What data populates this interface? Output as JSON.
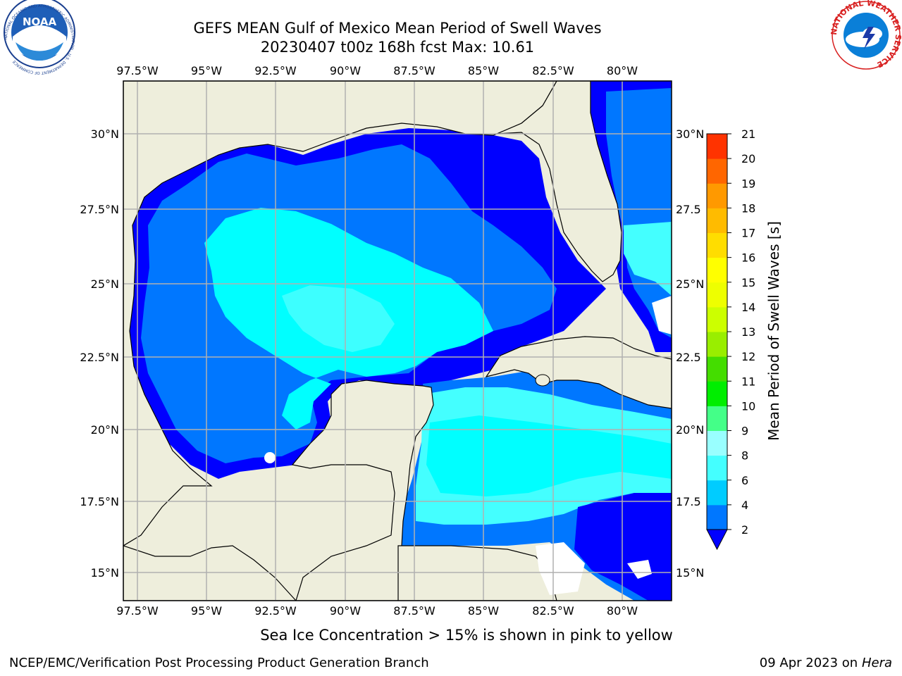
{
  "title": {
    "line1": "GEFS MEAN Gulf of Mexico Mean Period of Swell Waves",
    "line2": "20230407 t00z 168h fcst   Max: 10.61"
  },
  "map": {
    "lon_labels": [
      "97.5°W",
      "95°W",
      "92.5°W",
      "90°W",
      "87.5°W",
      "85°W",
      "82.5°W",
      "80°W"
    ],
    "lat_labels_left": [
      "30°N",
      "27.5°N",
      "25°N",
      "22.5°N",
      "20°N",
      "17.5°N",
      "15°N"
    ],
    "lat_labels_right": [
      "30°N",
      "27.5",
      "25°N",
      "22.5",
      "20°N",
      "17.5",
      "15°N"
    ],
    "land_color": "#eeeedc",
    "ocean_dark_color": "#0000ff",
    "ocean_mid_color": "#0077ff",
    "ocean_light_color": "#00ffff",
    "ocean_lighter_color": "#44ffff",
    "grid_color": "#b0b0b0"
  },
  "colorbar": {
    "title": "Mean Period of Swell Waves [s]",
    "ticks": [
      "2",
      "4",
      "6",
      "8",
      "9",
      "10",
      "11",
      "12",
      "13",
      "14",
      "15",
      "16",
      "17",
      "18",
      "19",
      "20",
      "21"
    ],
    "colors": [
      "#0077ff",
      "#00ccff",
      "#44ffff",
      "#99ffff",
      "#44ff88",
      "#00ee00",
      "#44dd00",
      "#99ee00",
      "#ccff00",
      "#eeff00",
      "#ffff00",
      "#ffdd00",
      "#ffbb00",
      "#ff9900",
      "#ff6600",
      "#ff3300"
    ],
    "under_color": "#0000ff"
  },
  "seaice_note": "Sea Ice Concentration > 15% is shown in pink to yellow",
  "footer": {
    "left": "NCEP/EMC/Verification Post Processing Product Generation Branch",
    "right_date": "09 Apr 2023 on ",
    "right_host": "Hera"
  },
  "logos": {
    "noaa_text": "NOAA",
    "noaa_ring": "NATIONAL OCEANIC AND ATMOSPHERIC ADMINISTRATION · U.S. DEPARTMENT OF COMMERCE",
    "nws_ring": "NATIONAL WEATHER SERVICE"
  }
}
